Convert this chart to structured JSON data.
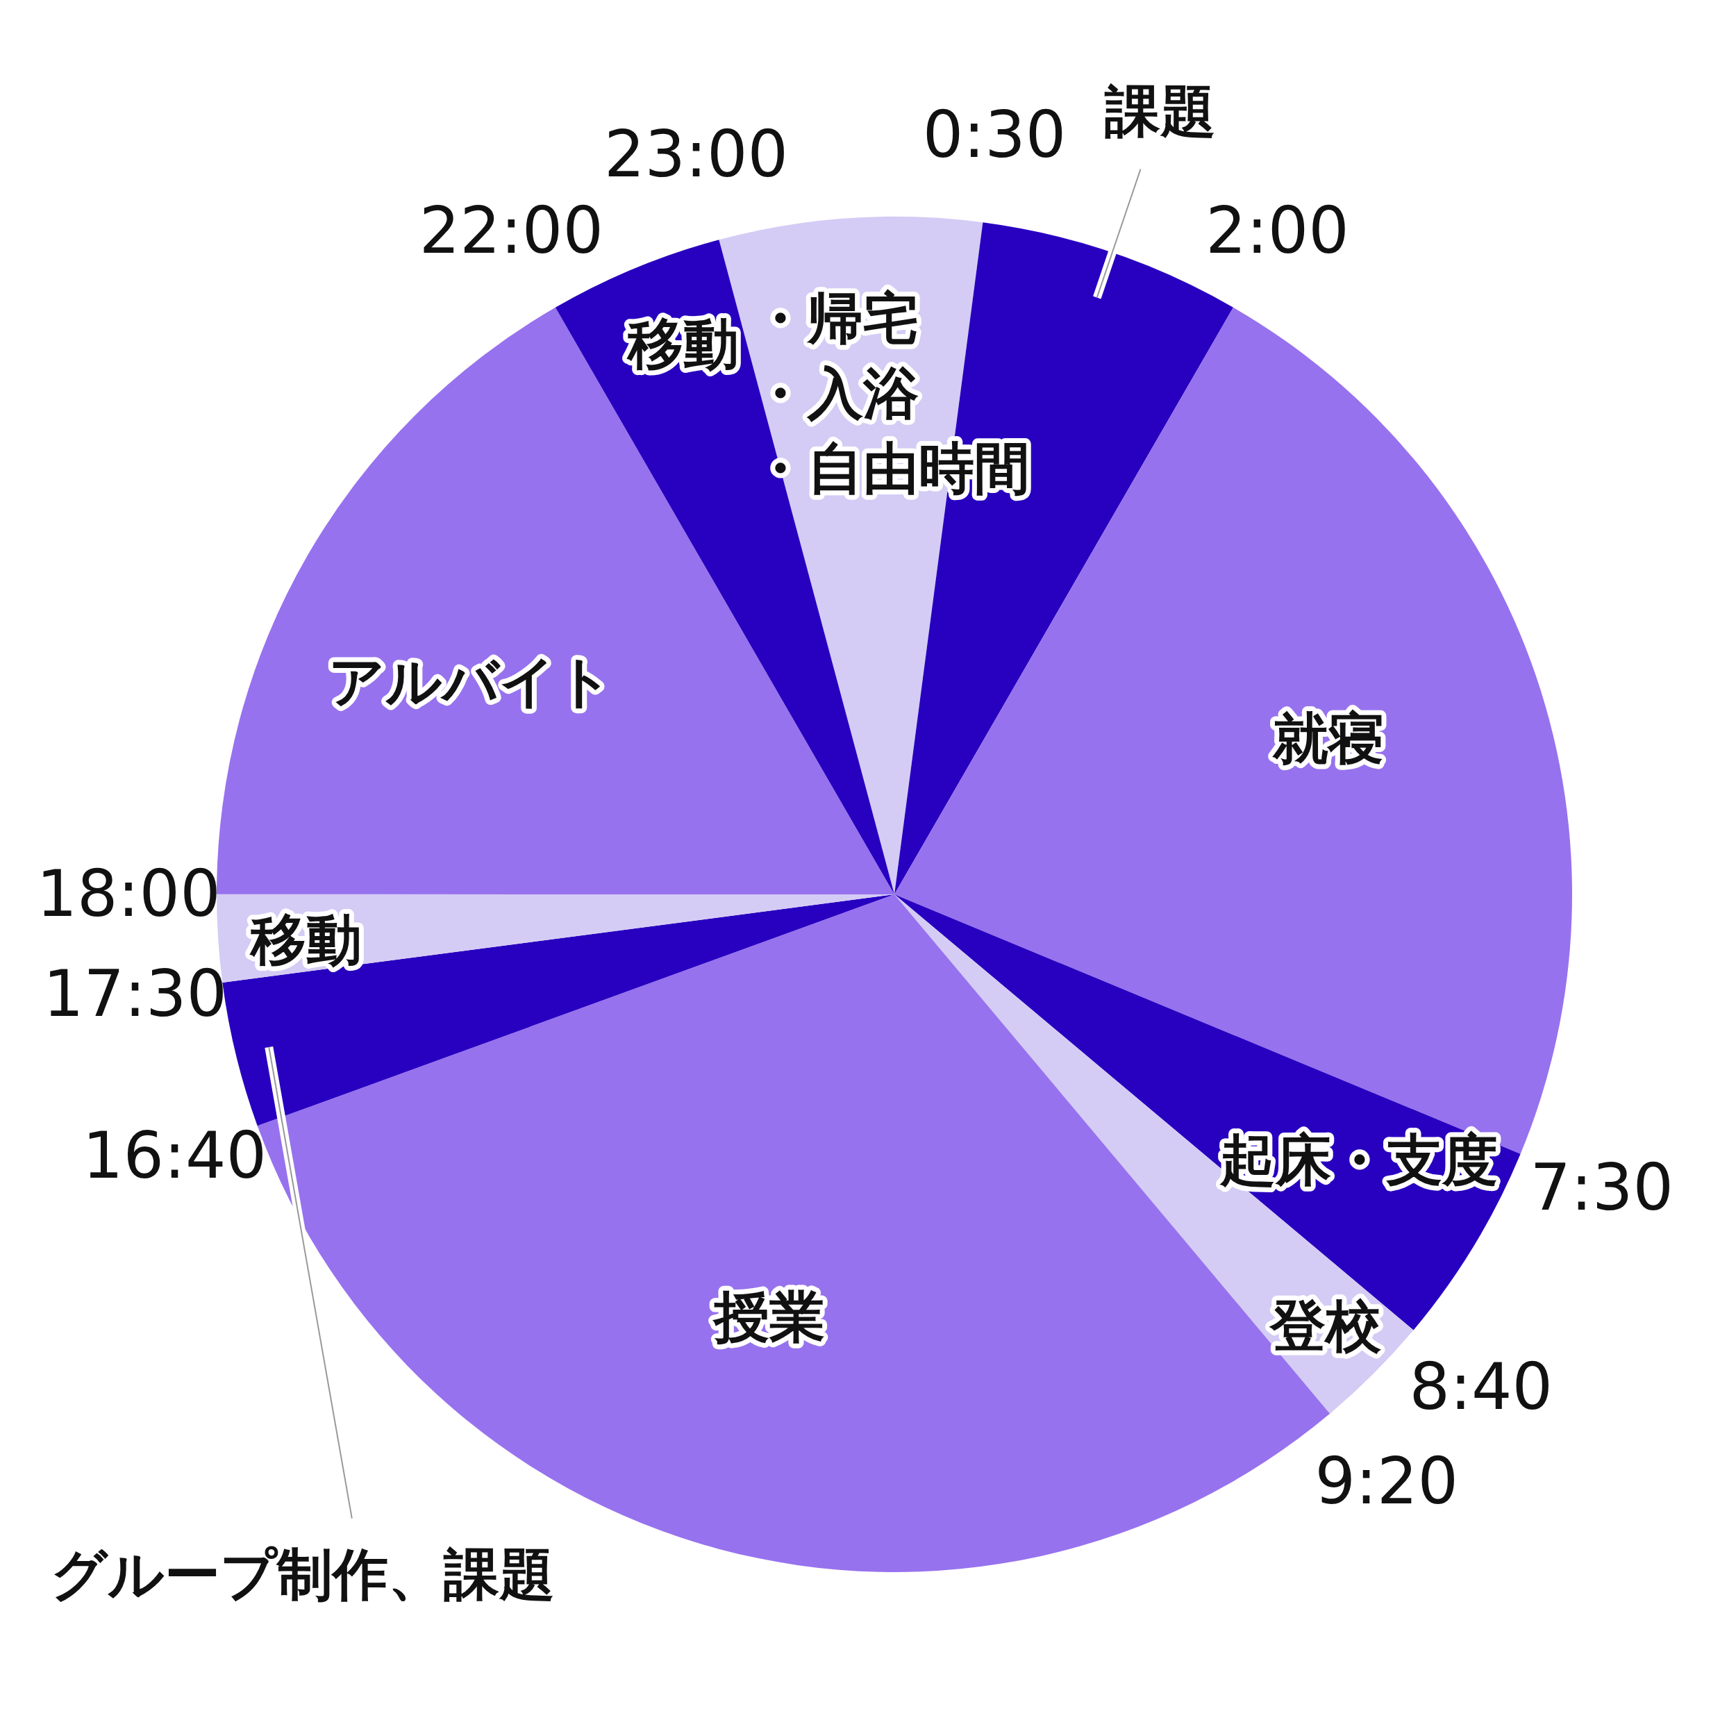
{
  "chart_data": {
    "type": "pie",
    "categories": [
      "・帰宅・入浴・自由時間",
      "課題",
      "就寝",
      "起床・支度",
      "登校",
      "授業",
      "グループ制作、課題",
      "移動",
      "アルバイト",
      "移動"
    ],
    "values": [
      6.25,
      6.25,
      22.92,
      4.86,
      2.78,
      30.56,
      3.47,
      2.08,
      16.66,
      4.17
    ],
    "colors": [
      "#d4ccf5",
      "#2800c0",
      "#9772ee",
      "#2800c0",
      "#d4ccf5",
      "#9772ee",
      "#2800c0",
      "#d4ccf5",
      "#9772ee",
      "#2800c0"
    ],
    "annotations": [
      "0:30",
      "2:00",
      "7:30",
      "8:40",
      "9:20",
      "16:40",
      "17:30",
      "18:00",
      "22:00",
      "23:00"
    ]
  }
}
